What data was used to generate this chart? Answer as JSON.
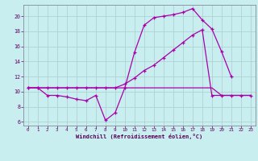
{
  "bg_color": "#c8eef0",
  "grid_color": "#aacccc",
  "line_color": "#aa00aa",
  "xlabel": "Windchill (Refroidissement éolien,°C)",
  "xlim": [
    -0.5,
    23.5
  ],
  "ylim": [
    5.5,
    21.5
  ],
  "yticks": [
    6,
    8,
    10,
    12,
    14,
    16,
    18,
    20
  ],
  "xticks": [
    0,
    1,
    2,
    3,
    4,
    5,
    6,
    7,
    8,
    9,
    10,
    11,
    12,
    13,
    14,
    15,
    16,
    17,
    18,
    19,
    20,
    21,
    22,
    23
  ],
  "curve1_x": [
    0,
    1,
    2,
    3,
    4,
    5,
    6,
    7,
    8,
    9,
    10,
    11,
    12,
    13,
    14,
    15,
    16,
    17,
    18,
    19,
    20,
    21
  ],
  "curve1_y": [
    10.5,
    10.5,
    9.5,
    9.5,
    9.3,
    9.0,
    8.8,
    9.5,
    6.2,
    7.2,
    10.5,
    15.2,
    18.8,
    19.8,
    20.0,
    20.2,
    20.5,
    21.0,
    19.5,
    18.3,
    15.3,
    12.0
  ],
  "curve2_x": [
    0,
    1,
    2,
    3,
    4,
    5,
    6,
    7,
    8,
    9,
    10,
    11,
    12,
    13,
    14,
    15,
    16,
    17,
    18,
    19,
    20,
    21,
    22,
    23
  ],
  "curve2_y": [
    10.5,
    10.5,
    10.5,
    10.5,
    10.5,
    10.5,
    10.5,
    10.5,
    10.5,
    10.5,
    11.0,
    11.8,
    12.8,
    13.5,
    14.5,
    15.5,
    16.5,
    17.5,
    18.2,
    9.5,
    9.5,
    9.5,
    9.5,
    9.5
  ],
  "curve3_x": [
    0,
    1,
    2,
    3,
    4,
    5,
    6,
    7,
    8,
    9,
    10,
    11,
    12,
    13,
    14,
    15,
    16,
    17,
    18,
    19,
    20,
    21,
    22,
    23
  ],
  "curve3_y": [
    10.5,
    10.5,
    10.5,
    10.5,
    10.5,
    10.5,
    10.5,
    10.5,
    10.5,
    10.5,
    10.5,
    10.5,
    10.5,
    10.5,
    10.5,
    10.5,
    10.5,
    10.5,
    10.5,
    10.5,
    9.5,
    9.5,
    9.5,
    9.5
  ]
}
